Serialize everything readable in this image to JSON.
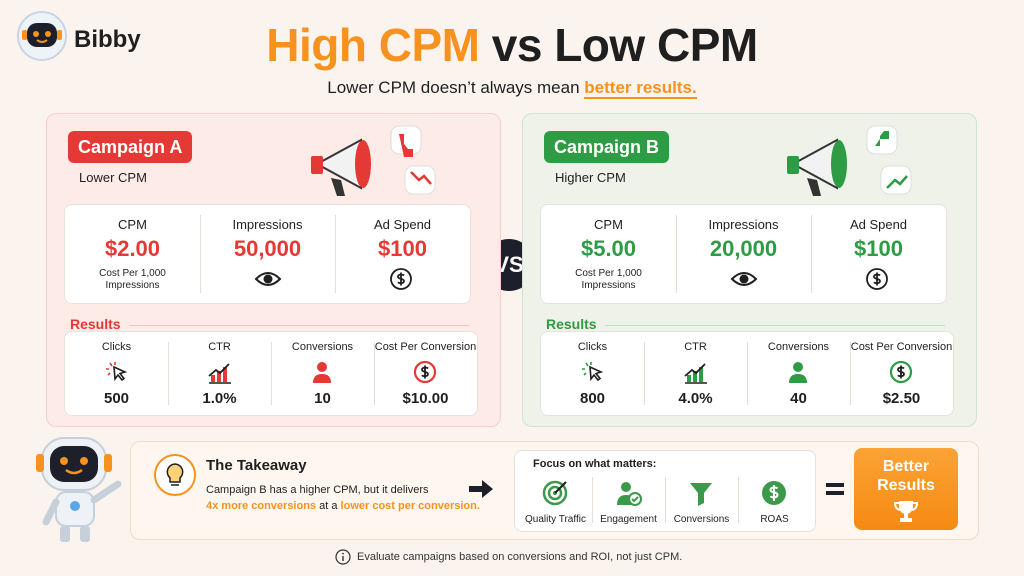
{
  "brand": {
    "name": "Bibby"
  },
  "header": {
    "title_highlight": "High CPM",
    "title_rest": "vs Low CPM",
    "subtitle": "Lower CPM doesn’t always mean",
    "subtitle_highlight": "better results."
  },
  "campaigns": [
    {
      "name": "Campaign A",
      "subtitle": "Lower CPM",
      "color": "#e53935",
      "metrics": [
        {
          "label": "CPM",
          "value": "$2.00",
          "note": "Cost Per 1,000 Impressions"
        },
        {
          "label": "Impressions",
          "value": "50,000"
        },
        {
          "label": "Ad Spend",
          "value": "$100"
        }
      ],
      "results_title": "Results",
      "results": [
        {
          "label": "Clicks",
          "value": "500"
        },
        {
          "label": "CTR",
          "value": "1.0%"
        },
        {
          "label": "Conversions",
          "value": "10"
        },
        {
          "label": "Cost Per Conversion",
          "value": "$10.00"
        }
      ]
    },
    {
      "name": "Campaign B",
      "subtitle": "Higher CPM",
      "color": "#2e9b45",
      "metrics": [
        {
          "label": "CPM",
          "value": "$5.00",
          "note": "Cost Per 1,000 Impressions"
        },
        {
          "label": "Impressions",
          "value": "20,000"
        },
        {
          "label": "Ad Spend",
          "value": "$100"
        }
      ],
      "results_title": "Results",
      "results": [
        {
          "label": "Clicks",
          "value": "800"
        },
        {
          "label": "CTR",
          "value": "4.0%"
        },
        {
          "label": "Conversions",
          "value": "40"
        },
        {
          "label": "Cost Per Conversion",
          "value": "$2.50"
        }
      ]
    }
  ],
  "vs": "VS",
  "takeaway": {
    "title": "The Takeaway",
    "line1": "Campaign B has a higher CPM, but it delivers",
    "highlight1": "4x more conversions",
    "middle": "at a",
    "highlight2": "lower cost per conversion."
  },
  "focus": {
    "title": "Focus on what matters:",
    "items": [
      "Quality Traffic",
      "Engagement",
      "Conversions",
      "ROAS"
    ]
  },
  "cta": {
    "label": "Better Results"
  },
  "footer": {
    "note": "Evaluate campaigns based on conversions and ROI, not just CPM."
  }
}
